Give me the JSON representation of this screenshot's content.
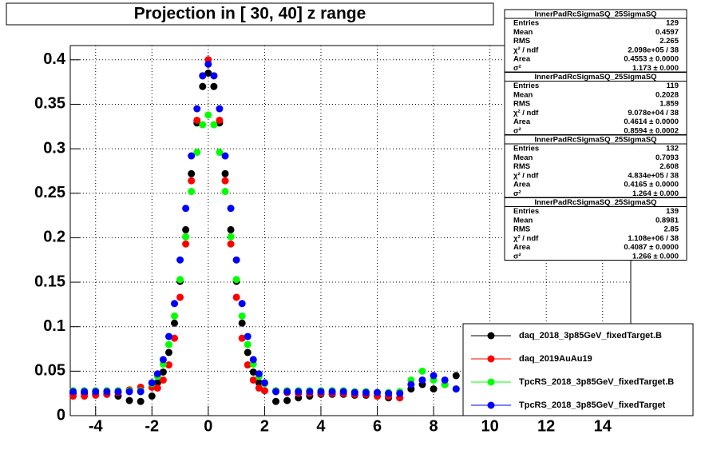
{
  "chart_data": {
    "type": "scatter",
    "title": "Projection in [  30,  40] z range",
    "x": [
      -4.8,
      -4.4,
      -4.0,
      -3.6,
      -3.2,
      -2.8,
      -2.4,
      -2.0,
      -1.8,
      -1.6,
      -1.4,
      -1.2,
      -1.0,
      -0.8,
      -0.6,
      -0.4,
      -0.2,
      0,
      0.2,
      0.4,
      0.6,
      0.8,
      1.0,
      1.2,
      1.4,
      1.6,
      1.8,
      2.0,
      2.4,
      2.8,
      3.2,
      3.6,
      4.0,
      4.4,
      4.8,
      5.2,
      5.6,
      6.0,
      6.4,
      6.8,
      7.2,
      7.6,
      8.0,
      8.4,
      8.8
    ],
    "series": [
      {
        "name": "daq_2018_3p85GeV_fixedTarget.B",
        "color": "#000000",
        "values": [
          0.025,
          0.025,
          0.024,
          0.024,
          0.022,
          0.017,
          0.016,
          0.022,
          0.037,
          0.049,
          0.071,
          0.104,
          0.151,
          0.209,
          0.272,
          0.329,
          0.37,
          0.385,
          0.37,
          0.329,
          0.272,
          0.209,
          0.151,
          0.104,
          0.071,
          0.049,
          0.037,
          0.028,
          0.016,
          0.017,
          0.02,
          0.022,
          0.024,
          0.024,
          0.024,
          0.023,
          0.023,
          0.022,
          0.02,
          0.02,
          0.03,
          0.035,
          0.03,
          0.035,
          0.045
        ]
      },
      {
        "name": "daq_2019AuAu19",
        "color": "#ff0000",
        "values": [
          0.022,
          0.022,
          0.023,
          0.024,
          0.026,
          0.029,
          0.032,
          0.032,
          0.031,
          0.04,
          0.057,
          0.087,
          0.133,
          0.193,
          0.264,
          0.332,
          0.382,
          0.4,
          0.382,
          0.332,
          0.264,
          0.193,
          0.133,
          0.087,
          0.057,
          0.04,
          0.031,
          0.028,
          0.028,
          0.026,
          0.025,
          0.025,
          0.025,
          0.025,
          0.025,
          0.024,
          0.024,
          0.022,
          0.022,
          0.02,
          null,
          null,
          null,
          null,
          null
        ]
      },
      {
        "name": "TpcRS_2018_3p85GeV_fixedTarget.B",
        "color": "#00ff00",
        "values": [
          0.028,
          0.028,
          0.028,
          0.028,
          0.028,
          0.028,
          0.028,
          0.036,
          0.044,
          0.058,
          0.08,
          0.112,
          0.153,
          0.201,
          0.252,
          0.296,
          0.327,
          0.338,
          0.327,
          0.296,
          0.252,
          0.201,
          0.153,
          0.112,
          0.08,
          0.058,
          0.044,
          0.036,
          0.028,
          0.028,
          0.028,
          0.028,
          0.028,
          0.028,
          0.028,
          0.027,
          0.027,
          0.026,
          0.026,
          0.027,
          0.04,
          0.05,
          0.04,
          0.035,
          0.03
        ]
      },
      {
        "name": "TpcRS_2018_3p85GeV_fixedTarget",
        "color": "#0000ff",
        "values": [
          0.027,
          0.027,
          0.027,
          0.027,
          0.027,
          0.027,
          0.027,
          0.037,
          0.047,
          0.063,
          0.089,
          0.126,
          0.175,
          0.233,
          0.292,
          0.345,
          0.382,
          0.395,
          0.382,
          0.345,
          0.292,
          0.233,
          0.175,
          0.126,
          0.089,
          0.063,
          0.047,
          0.037,
          0.027,
          0.027,
          0.027,
          0.027,
          0.027,
          0.027,
          0.027,
          0.026,
          0.026,
          0.026,
          0.025,
          0.025,
          0.035,
          0.04,
          0.045,
          0.04,
          0.03
        ]
      }
    ],
    "xlim": [
      -4.9,
      15
    ],
    "xticks": [
      -4,
      -2,
      0,
      2,
      4,
      6,
      8,
      10,
      12,
      14
    ],
    "ylim": [
      0,
      0.416
    ],
    "yticks": [
      0,
      0.05,
      0.1,
      0.15,
      0.2,
      0.25,
      0.3,
      0.35,
      0.4
    ],
    "grid": true,
    "stats": [
      {
        "title": "InnerPadRcSigmaSQ_25SigmaSQ",
        "rows": [
          [
            "Entries",
            "129"
          ],
          [
            "Mean",
            "0.4597"
          ],
          [
            "RMS",
            "2.265"
          ],
          [
            "χ² / ndf",
            "2.098e+05 / 38"
          ],
          [
            "Area",
            "0.4553 ± 0.0000"
          ],
          [
            "σ²",
            "1.173 ± 0.000"
          ]
        ]
      },
      {
        "title": "InnerPadRcSigmaSQ_25SigmaSQ",
        "rows": [
          [
            "Entries",
            "119"
          ],
          [
            "Mean",
            "0.2028"
          ],
          [
            "RMS",
            "1.859"
          ],
          [
            "χ² / ndf",
            "9.078e+04 / 38"
          ],
          [
            "Area",
            "0.4614 ± 0.0000"
          ],
          [
            "σ²",
            "0.8594 ± 0.0002"
          ]
        ]
      },
      {
        "title": "InnerPadRcSigmaSQ_25SigmaSQ",
        "rows": [
          [
            "Entries",
            "132"
          ],
          [
            "Mean",
            "0.7093"
          ],
          [
            "RMS",
            "2.608"
          ],
          [
            "χ² / ndf",
            "4.834e+05 / 38"
          ],
          [
            "Area",
            "0.4165 ± 0.0000"
          ],
          [
            "σ²",
            "1.264 ± 0.000"
          ]
        ]
      },
      {
        "title": "InnerPadRcSigmaSQ_25SigmaSQ",
        "rows": [
          [
            "Entries",
            "139"
          ],
          [
            "Mean",
            "0.8981"
          ],
          [
            "RMS",
            "2.85"
          ],
          [
            "χ² / ndf",
            "1.108e+06 / 38"
          ],
          [
            "Area",
            "0.4087 ± 0.0000"
          ],
          [
            "σ²",
            "1.266 ± 0.000"
          ]
        ]
      }
    ]
  }
}
